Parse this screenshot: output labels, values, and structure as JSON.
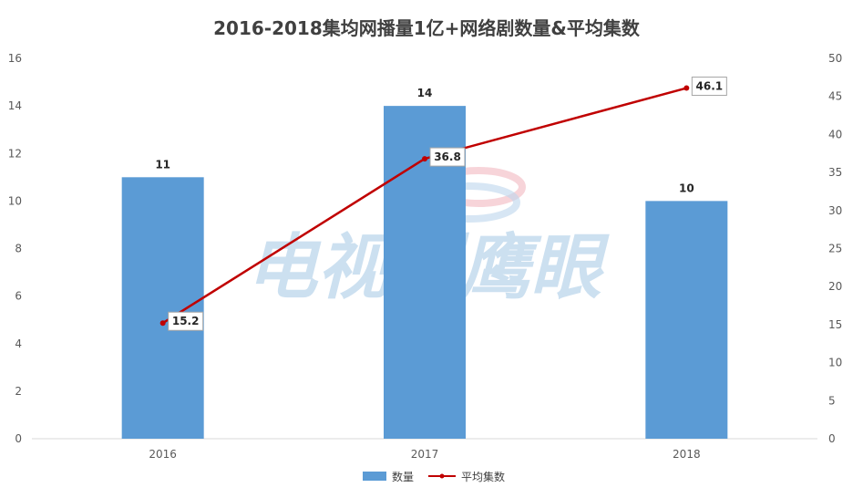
{
  "chart_data": {
    "type": "bar",
    "title": "2016-2018集均网播量1亿+网络剧数量&平均集数",
    "categories": [
      "2016",
      "2017",
      "2018"
    ],
    "series": [
      {
        "name": "数量",
        "type": "bar",
        "axis": "left",
        "values": [
          11,
          14,
          10
        ],
        "color": "#5b9bd5"
      },
      {
        "name": "平均集数",
        "type": "line",
        "axis": "right",
        "values": [
          15.2,
          36.8,
          46.1
        ],
        "color": "#c00000"
      }
    ],
    "y_left": {
      "min": 0,
      "max": 16,
      "step": 2
    },
    "y_right": {
      "min": 0,
      "max": 50,
      "step": 5
    },
    "grid": false,
    "legend_position": "bottom"
  },
  "watermark": {
    "text": "电视剧鹰眼"
  }
}
